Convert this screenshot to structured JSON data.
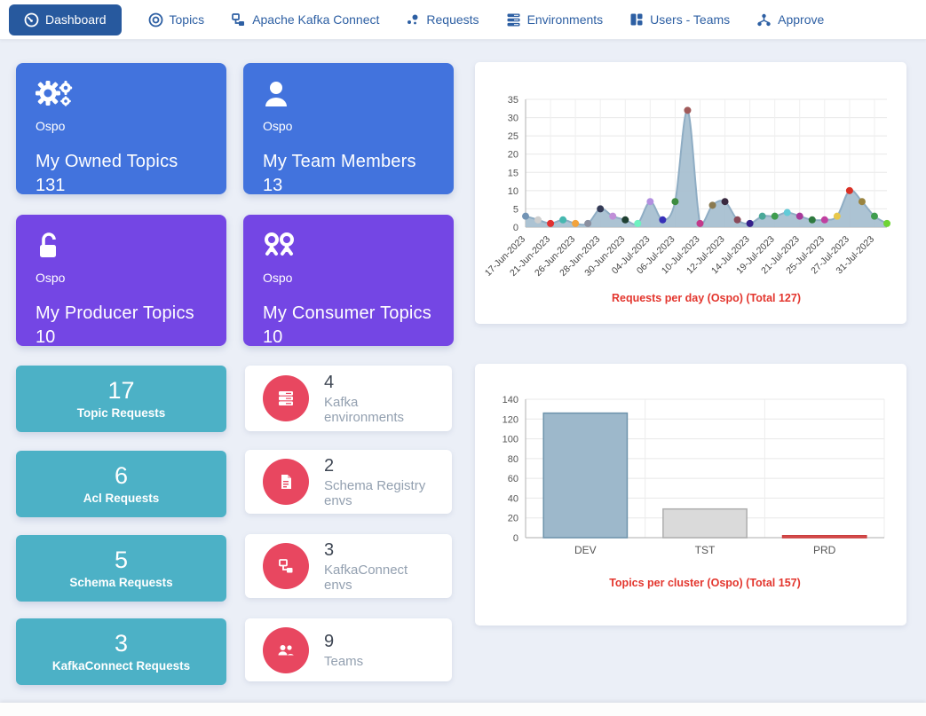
{
  "navbar": {
    "items": [
      {
        "label": "Dashboard",
        "active": true
      },
      {
        "label": "Topics",
        "active": false
      },
      {
        "label": "Apache Kafka Connect",
        "active": false
      },
      {
        "label": "Requests",
        "active": false
      },
      {
        "label": "Environments",
        "active": false
      },
      {
        "label": "Users - Teams",
        "active": false
      },
      {
        "label": "Approve",
        "active": false
      }
    ]
  },
  "stat_cards": [
    {
      "team": "Ospo",
      "title": "My Owned Topics",
      "value": "131",
      "color": "#4273dd"
    },
    {
      "team": "Ospo",
      "title": "My Team Members",
      "value": "13",
      "color": "#4273dd"
    },
    {
      "team": "Ospo",
      "title": "My Producer Topics",
      "value": "10",
      "color": "#7446e4"
    },
    {
      "team": "Ospo",
      "title": "My Consumer Topics",
      "value": "10",
      "color": "#7446e4"
    }
  ],
  "request_cards": [
    {
      "value": "17",
      "label": "Topic Requests"
    },
    {
      "value": "6",
      "label": "Acl Requests"
    },
    {
      "value": "5",
      "label": "Schema Requests"
    },
    {
      "value": "3",
      "label": "KafkaConnect Requests"
    }
  ],
  "env_cards": [
    {
      "value": "4",
      "label": "Kafka environments"
    },
    {
      "value": "2",
      "label": "Schema Registry envs"
    },
    {
      "value": "3",
      "label": "KafkaConnect envs"
    },
    {
      "value": "9",
      "label": "Teams"
    }
  ],
  "colors": {
    "nav_active_bg": "#27599e",
    "nav_link": "#2d5fa3",
    "card_blue": "#4273dd",
    "card_purple": "#7446e4",
    "card_teal": "#4cb1c6",
    "env_icon_red": "#e84760",
    "chart_title_red": "#e3362e",
    "area_fill": "#a5becf",
    "page_bg": "#ebeff7"
  },
  "chart_data": [
    {
      "type": "area",
      "title": "Requests per day (Ospo) (Total 127)",
      "total": 127,
      "values": [
        3,
        2,
        1,
        2,
        1,
        1,
        5,
        3,
        2,
        1,
        7,
        2,
        7,
        32,
        1,
        6,
        7,
        2,
        1,
        3,
        3,
        4,
        3,
        2,
        2,
        3,
        10,
        7,
        3,
        1
      ],
      "point_colors": [
        "#7294b5",
        "#cfcfcf",
        "#e03131",
        "#46b8b0",
        "#f2a33c",
        "#8b90a0",
        "#343a56",
        "#c08fd8",
        "#1f4032",
        "#6ef2c0",
        "#b28fe0",
        "#3730b8",
        "#3d8c40",
        "#a05a5a",
        "#c23a8a",
        "#8a7a50",
        "#3a2a40",
        "#8a4a5a",
        "#35208a",
        "#4aa898",
        "#3f9d4f",
        "#62cbd8",
        "#a83a9a",
        "#2f7a3f",
        "#c040a0",
        "#e8c84a",
        "#d93025",
        "#9a8440",
        "#3f9d4f",
        "#6fd435"
      ],
      "x_tick_labels": [
        "17-Jun-2023",
        "21-Jun-2023",
        "26-Jun-2023",
        "28-Jun-2023",
        "30-Jun-2023",
        "04-Jul-2023",
        "06-Jul-2023",
        "10-Jul-2023",
        "12-Jul-2023",
        "14-Jul-2023",
        "19-Jul-2023",
        "21-Jul-2023",
        "25-Jul-2023",
        "27-Jul-2023",
        "31-Jul-2023"
      ],
      "x_tick_every": 2,
      "ylim": [
        0,
        35
      ],
      "ytick_step": 5,
      "fill_color": "#a5becf",
      "line_color": "#8fadc4",
      "title_color": "#e3362e",
      "grid": true,
      "legend": "none"
    },
    {
      "type": "bar",
      "title": "Topics per cluster (Ospo) (Total 157)",
      "total": 157,
      "categories": [
        "DEV",
        "TST",
        "PRD"
      ],
      "values": [
        126,
        29,
        2
      ],
      "bar_colors": [
        "#9db8cb",
        "#dadada",
        "#e25b5b"
      ],
      "bar_borders": [
        "#6d93ab",
        "#aeaeae",
        "#c93b3b"
      ],
      "ylim": [
        0,
        140
      ],
      "ytick_step": 20,
      "title_color": "#e3362e",
      "grid": true,
      "legend": "none"
    }
  ]
}
